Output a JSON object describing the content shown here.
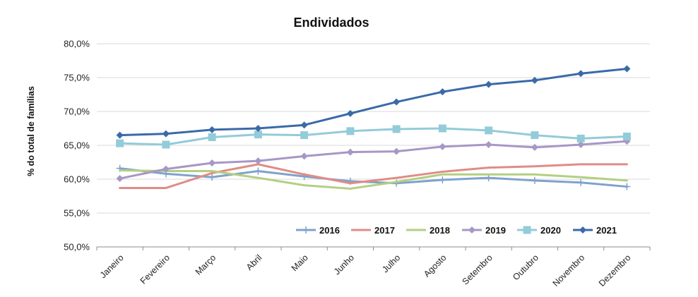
{
  "chart_data": {
    "type": "line",
    "title": "Endividados",
    "ylabel": "% do total de famílias",
    "xlabel": "",
    "categories": [
      "Janeiro",
      "Fevereiro",
      "Março",
      "Abril",
      "Maio",
      "Junho",
      "Julho",
      "Agosto",
      "Setembro",
      "Outubro",
      "Novembro",
      "Dezembro"
    ],
    "ylim": [
      50,
      80
    ],
    "yticks": [
      50,
      55,
      60,
      65,
      70,
      75,
      80
    ],
    "ytick_labels": [
      "50,0%",
      "55,0%",
      "60,0%",
      "65,0%",
      "70,0%",
      "75,0%",
      "80,0%"
    ],
    "grid": "horizontal",
    "legend_position": "bottom-right inside plot",
    "series": [
      {
        "name": "2016",
        "color": "#7fa2cc",
        "marker": "plus",
        "values": [
          61.6,
          60.8,
          60.3,
          61.2,
          60.4,
          59.7,
          59.4,
          59.9,
          60.2,
          59.8,
          59.5,
          58.9
        ]
      },
      {
        "name": "2017",
        "color": "#e08c86",
        "marker": "none",
        "values": [
          58.7,
          58.7,
          60.9,
          62.2,
          60.7,
          59.4,
          60.2,
          61.1,
          61.7,
          61.9,
          62.2,
          62.2
        ]
      },
      {
        "name": "2018",
        "color": "#b3cf82",
        "marker": "none",
        "values": [
          61.3,
          61.2,
          61.2,
          60.2,
          59.1,
          58.6,
          59.6,
          60.7,
          60.7,
          60.7,
          60.3,
          59.8
        ]
      },
      {
        "name": "2019",
        "color": "#a797c6",
        "marker": "diamond",
        "values": [
          60.1,
          61.5,
          62.4,
          62.7,
          63.4,
          64.0,
          64.1,
          64.8,
          65.1,
          64.7,
          65.1,
          65.6
        ]
      },
      {
        "name": "2020",
        "color": "#93cbd9",
        "marker": "square",
        "values": [
          65.3,
          65.1,
          66.2,
          66.6,
          66.5,
          67.1,
          67.4,
          67.5,
          67.2,
          66.5,
          66.0,
          66.3
        ]
      },
      {
        "name": "2021",
        "color": "#3a6aa8",
        "marker": "diamond",
        "values": [
          66.5,
          66.7,
          67.3,
          67.5,
          68.0,
          69.7,
          71.4,
          72.9,
          74.0,
          74.6,
          75.6,
          76.3
        ]
      }
    ]
  }
}
